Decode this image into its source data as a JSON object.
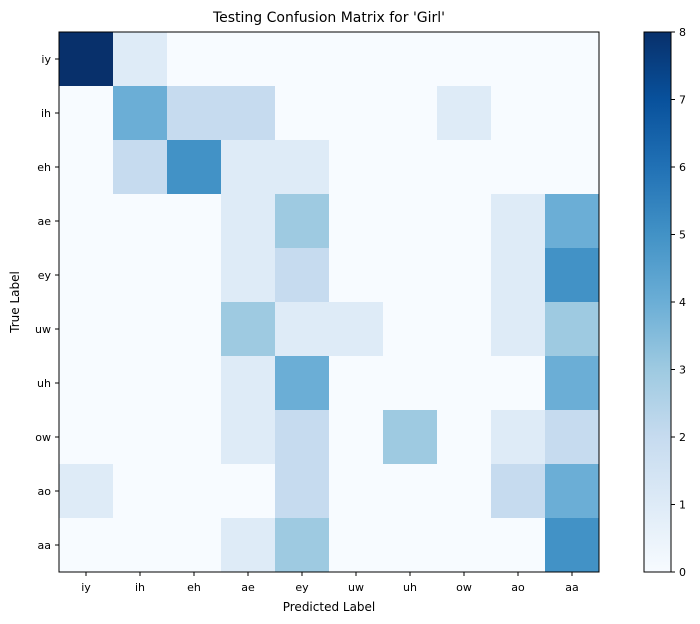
{
  "chart_data": {
    "type": "heatmap",
    "title": "Testing Confusion Matrix for 'Girl'",
    "xlabel": "Predicted Label",
    "ylabel": "True Label",
    "x_categories": [
      "iy",
      "ih",
      "eh",
      "ae",
      "ey",
      "uw",
      "uh",
      "ow",
      "ao",
      "aa"
    ],
    "y_categories": [
      "iy",
      "ih",
      "eh",
      "ae",
      "ey",
      "uw",
      "uh",
      "ow",
      "ao",
      "aa"
    ],
    "values": [
      [
        8,
        1,
        0,
        0,
        0,
        0,
        0,
        0,
        0,
        0
      ],
      [
        0,
        4,
        2,
        2,
        0,
        0,
        0,
        1,
        0,
        0
      ],
      [
        0,
        2,
        5,
        1,
        1,
        0,
        0,
        0,
        0,
        0
      ],
      [
        0,
        0,
        0,
        1,
        3,
        0,
        0,
        0,
        1,
        4
      ],
      [
        0,
        0,
        0,
        1,
        2,
        0,
        0,
        0,
        1,
        5
      ],
      [
        0,
        0,
        0,
        3,
        1,
        1,
        0,
        0,
        1,
        3
      ],
      [
        0,
        0,
        0,
        1,
        4,
        0,
        0,
        0,
        0,
        4
      ],
      [
        0,
        0,
        0,
        1,
        2,
        0,
        3,
        0,
        1,
        2
      ],
      [
        1,
        0,
        0,
        0,
        2,
        0,
        0,
        0,
        2,
        4
      ],
      [
        0,
        0,
        0,
        1,
        3,
        0,
        0,
        0,
        0,
        5
      ]
    ],
    "vmin": 0,
    "vmax": 8,
    "colormap": "Blues",
    "colorbar_ticks": [
      "0",
      "1",
      "2",
      "3",
      "4",
      "5",
      "6",
      "7",
      "8"
    ],
    "grid": false
  }
}
